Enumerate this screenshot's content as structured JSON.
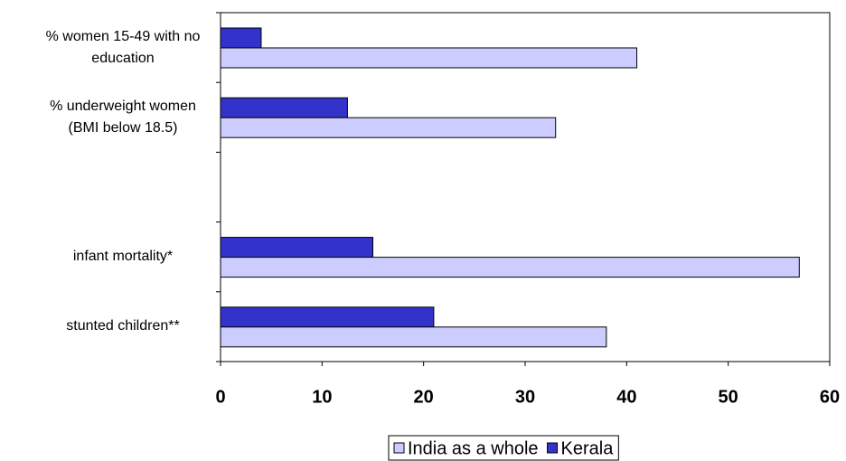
{
  "chart_data": {
    "type": "bar",
    "orientation": "horizontal",
    "categories": [
      "% women 15-49 with no education",
      "% underweight women (BMI below 18.5)",
      null,
      "infant mortality*",
      "stunted children**"
    ],
    "series": [
      {
        "name": "Kerala",
        "color": "#3333cc",
        "values": [
          4,
          12.5,
          null,
          15,
          21
        ]
      },
      {
        "name": "India as a whole",
        "color": "#ccccff",
        "values": [
          41,
          33,
          null,
          57,
          38
        ]
      }
    ],
    "xlim": [
      0,
      60
    ],
    "xticks": [
      0,
      10,
      20,
      30,
      40,
      50,
      60
    ],
    "legend": "bottom",
    "legend_order": [
      1,
      0
    ]
  }
}
